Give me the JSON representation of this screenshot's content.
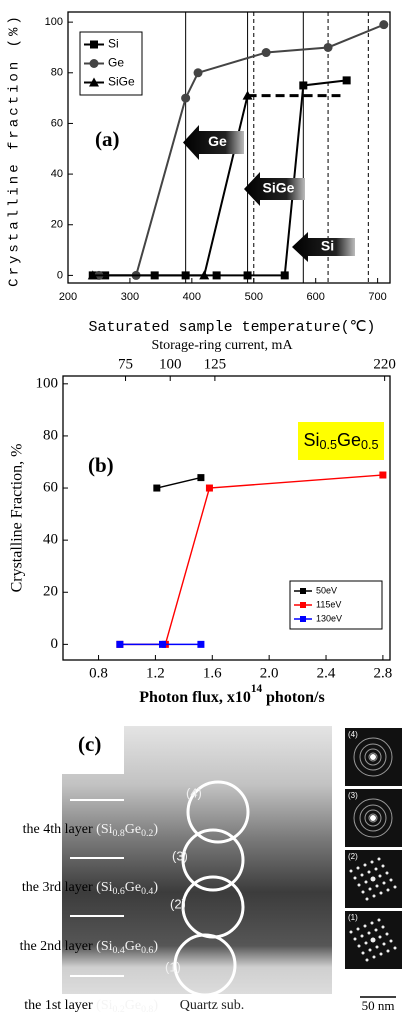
{
  "chart_data": [
    {
      "type": "line",
      "panel_label": "(a)",
      "y_label": "Crystalline fraction (%)",
      "x_label": "Saturated sample temperature(℃)",
      "xlim": [
        200,
        720
      ],
      "ylim": [
        -3,
        104
      ],
      "xticks": [
        200,
        300,
        400,
        500,
        600,
        700
      ],
      "yticks": [
        0,
        20,
        40,
        60,
        80,
        100
      ],
      "legend": "upper left",
      "series": [
        {
          "name": "Si",
          "color": "#000000",
          "marker": "square",
          "x": [
            240,
            260,
            340,
            390,
            440,
            490,
            550,
            580,
            650
          ],
          "values": [
            0,
            0,
            0,
            0,
            0,
            0,
            0,
            75,
            77
          ]
        },
        {
          "name": "Ge",
          "color": "#444444",
          "marker": "circle",
          "x": [
            250,
            310,
            390,
            410,
            520,
            620,
            710
          ],
          "values": [
            0,
            0,
            70,
            80,
            88,
            90,
            99
          ]
        },
        {
          "name": "SiGe",
          "color": "#000000",
          "marker": "triangle",
          "x": [
            240,
            420,
            490
          ],
          "values": [
            0,
            0,
            71
          ]
        }
      ],
      "dashed_level": {
        "y": 71,
        "x": [
          490,
          640
        ]
      },
      "solid_vlines": [
        390,
        490,
        580
      ],
      "dashed_vlines": [
        500,
        620,
        685
      ],
      "annotations": [
        "Ge",
        "SiGe",
        "Si"
      ]
    },
    {
      "type": "line",
      "panel_label": "(b)",
      "y_label": "Crystalline Fraction, %",
      "x_label": [
        "Photon flux, x10",
        "14",
        " photon/s"
      ],
      "x2_label": "Storage-ring current, mA",
      "xlim": [
        0.55,
        2.85
      ],
      "ylim": [
        -6,
        103
      ],
      "xticks": [
        0.8,
        1.2,
        1.6,
        {
          "value": 2.0,
          "label": "2.0"
        },
        2.4,
        2.8
      ],
      "yticks": [
        0,
        20,
        40,
        60,
        80,
        100
      ],
      "x2lim": [
        40,
        223
      ],
      "x2ticks": [
        75,
        100,
        125,
        220
      ],
      "legend": "lower right",
      "formula": [
        "Si",
        "0.5",
        "Ge",
        "0.5"
      ],
      "series": [
        {
          "name": "50eV",
          "color": "#000000",
          "marker": "square",
          "x": [
            1.21,
            1.52
          ],
          "values": [
            60,
            64
          ]
        },
        {
          "name": "115eV",
          "color": "#ff0000",
          "marker": "square",
          "x": [
            0.95,
            1.27,
            1.58,
            2.8
          ],
          "values": [
            0,
            0,
            60,
            65
          ]
        },
        {
          "name": "130eV",
          "color": "#0000ff",
          "marker": "square",
          "x": [
            0.95,
            1.25,
            1.52
          ],
          "values": [
            0,
            0,
            0
          ]
        }
      ]
    }
  ],
  "figure_c": {
    "panel_label": "(c)",
    "layers": [
      {
        "name": "the 4th layer ",
        "formula": [
          "(Si",
          "0.8",
          "Ge",
          "0.2",
          ")"
        ]
      },
      {
        "name": "the 3rd layer ",
        "formula": [
          "(Si",
          "0.6",
          "Ge",
          "0.4",
          ")"
        ]
      },
      {
        "name": "the 2nd layer ",
        "formula": [
          "(Si",
          "0.4",
          "Ge",
          "0.6",
          ")"
        ]
      },
      {
        "name": "the 1st layer ",
        "formula": [
          "(Si",
          "0.2",
          "Ge",
          "0.8",
          ")"
        ]
      }
    ],
    "circle_labels": [
      "(4)",
      "(3)",
      "(2)",
      "(1)"
    ],
    "substrate": "Quartz sub.",
    "diffraction_labels": [
      "(4)",
      "(3)",
      "(2)",
      "(1)"
    ],
    "scale_bar": "50 nm"
  }
}
